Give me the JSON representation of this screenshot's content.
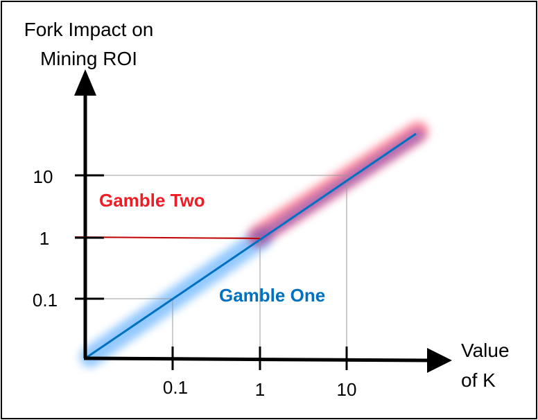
{
  "y_axis_title_line1": "Fork Impact on",
  "y_axis_title_line2": "Mining ROI",
  "x_axis_title_line1": "Value",
  "x_axis_title_line2": "of K",
  "y_ticks": [
    "10",
    "1",
    "0.1"
  ],
  "x_ticks": [
    "0.1",
    "1",
    "10"
  ],
  "gamble_two_label": "Gamble Two",
  "gamble_one_label": "Gamble One",
  "colors": {
    "gamble_two": "#ee1c24",
    "gamble_one": "#0070c0",
    "glow_red": "#ff2020",
    "glow_blue": "#3a9cff",
    "glow_purple": "#6a3aa8"
  }
}
